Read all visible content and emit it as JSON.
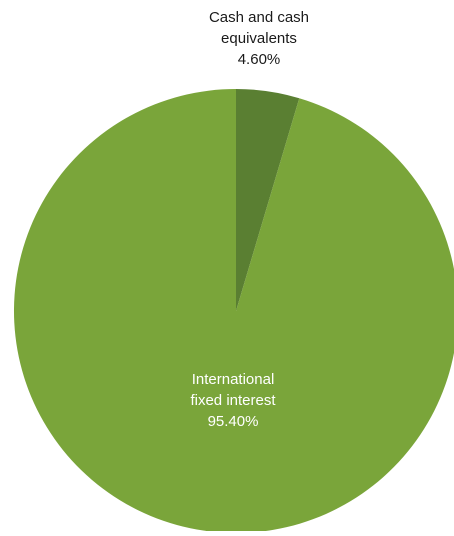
{
  "chart_data": {
    "type": "pie",
    "categories": [
      "Cash and cash equivalents",
      "International fixed interest"
    ],
    "values": [
      4.6,
      95.4
    ],
    "value_labels": [
      "4.60%",
      "95.40%"
    ],
    "label_lines": [
      [
        "Cash and cash",
        "equivalents",
        "4.60%"
      ],
      [
        "International",
        "fixed interest",
        "95.40%"
      ]
    ],
    "colors": [
      "#5a7f32",
      "#7aa53a"
    ],
    "label_colors": [
      "#1a1a1a",
      "#ffffff"
    ],
    "start_angle_deg": 0,
    "direction": "clockwise",
    "legend": "none"
  }
}
